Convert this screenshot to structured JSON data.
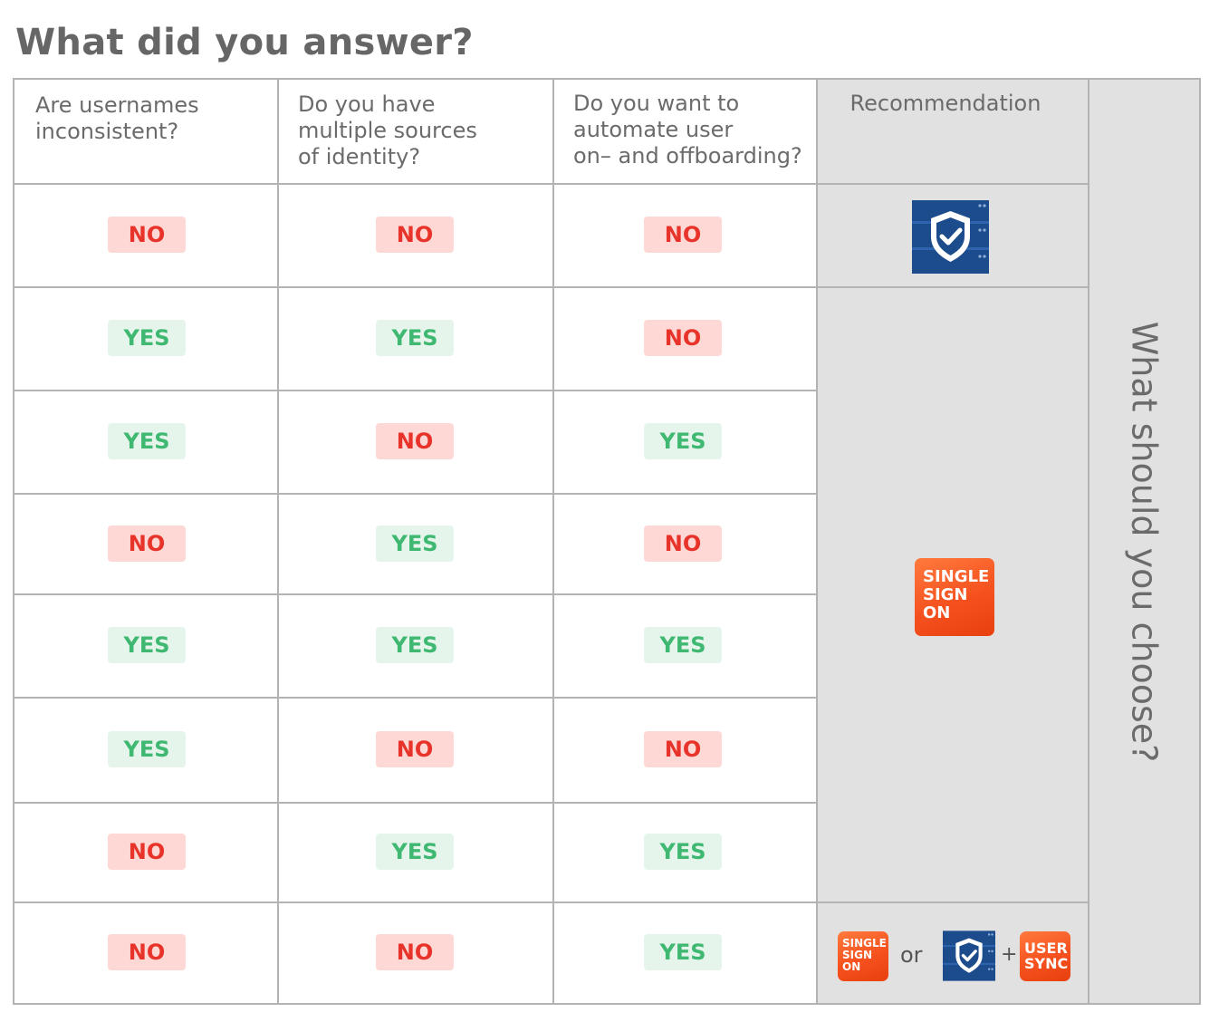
{
  "title": "What did you answer?",
  "columns": [
    "Are usernames\ninconsistent?",
    "Do you have\nmultiple sources\nof identity?",
    "Do you want to\nautomate user\non– and offboarding?"
  ],
  "recommendation_header": "Recommendation",
  "side_label": "What should you choose?",
  "rows": [
    [
      "NO",
      "NO",
      "NO"
    ],
    [
      "YES",
      "YES",
      "NO"
    ],
    [
      "YES",
      "NO",
      "YES"
    ],
    [
      "NO",
      "YES",
      "NO"
    ],
    [
      "YES",
      "YES",
      "YES"
    ],
    [
      "YES",
      "NO",
      "NO"
    ],
    [
      "NO",
      "YES",
      "YES"
    ],
    [
      "NO",
      "NO",
      "YES"
    ]
  ],
  "sso": {
    "line1": "SINGLE",
    "line2": "SIGN",
    "line3": "ON"
  },
  "user_sync": {
    "line1": "USER",
    "line2": "SYNC"
  },
  "or_label": "or",
  "plus_label": "+",
  "colors": {
    "no_bg": "#fdd8d5",
    "no_text": "#e8332a",
    "yes_bg": "#e6f5ec",
    "yes_text": "#3fb872",
    "shield_bg": "#1d4c8c",
    "sso_orange": "#f5511e"
  },
  "icons": {
    "recommendation_row1": "shield-check-icon",
    "recommendation_rows2_7": "single-sign-on-icon",
    "recommendation_row8": [
      "single-sign-on-icon",
      "shield-check-icon",
      "user-sync-icon"
    ]
  }
}
